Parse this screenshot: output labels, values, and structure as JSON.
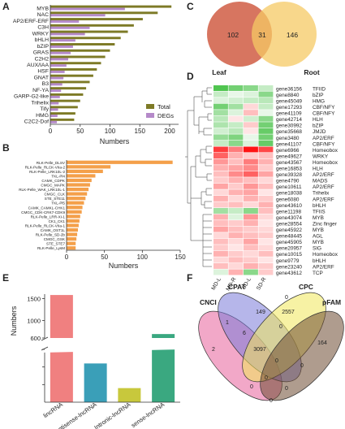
{
  "panels": {
    "A": "A",
    "B": "B",
    "C": "C",
    "D": "D",
    "E": "E",
    "F": "F"
  },
  "chart_data": [
    {
      "panel": "A",
      "type": "bar",
      "orientation": "horizontal",
      "categories": [
        "MYB",
        "NAC",
        "AP2/ERF-ERF",
        "C3H",
        "WRKY",
        "bHLH",
        "bZIP",
        "GRAS",
        "C2H2",
        "AUX/IAA",
        "HSF",
        "GNAT",
        "B3",
        "NF-YA",
        "GARP-G2-like",
        "Trihelix",
        "Tify",
        "HMG",
        "C2C2-Dof"
      ],
      "series": [
        {
          "name": "Total",
          "color": "#7d7a26",
          "values": [
            203,
            180,
            155,
            140,
            130,
            118,
            108,
            100,
            92,
            85,
            78,
            72,
            66,
            60,
            55,
            50,
            46,
            42,
            40
          ]
        },
        {
          "name": "DEGs",
          "color": "#b58ac9",
          "values": [
            125,
            92,
            48,
            66,
            58,
            42,
            38,
            34,
            30,
            27,
            24,
            22,
            20,
            18,
            16,
            14,
            13,
            12,
            11
          ]
        }
      ],
      "xlabel": "Numbers",
      "xticks": [
        0,
        50,
        100,
        150,
        200
      ],
      "xlim": [
        0,
        215
      ],
      "legend": "bottom-right"
    },
    {
      "panel": "B",
      "type": "bar",
      "orientation": "horizontal",
      "categories": [
        "RLK-Pelle_DLSV",
        "RLK-Pelle_RLCK-VIIa-2",
        "RLK-Pelle_LRK10L-2",
        "TKL-Pl4",
        "CAMK_CDPK",
        "CMGC_MAPK",
        "RLK-Pelle_WAK_LRK10L-1",
        "CMGC_CLK",
        "STE_STE11",
        "TKL-Pl5",
        "CAMK_CAMKL-CHK1",
        "CMGC_CDK-CRK7-CDK9",
        "RLK-Pelle_LRR-XI-1",
        "CK1_CK1",
        "RLK-Pelle_RLCK-VIIa-1",
        "CAMK_OST1L",
        "RLK-Pelle_SD-2b",
        "CMGC_GSK",
        "STE_STE7",
        "RLK-Pelle_LysM"
      ],
      "series": [
        {
          "name": "",
          "color": "#f4a04a",
          "values": [
            140,
            58,
            48,
            38,
            33,
            31,
            29,
            27,
            25,
            23,
            21,
            20,
            18,
            17,
            16,
            15,
            14,
            13,
            12,
            12
          ]
        }
      ],
      "xlabel": "Numbers",
      "xticks": [
        0,
        50,
        100,
        150
      ],
      "xlim": [
        0,
        150
      ]
    },
    {
      "panel": "C",
      "type": "venn",
      "sets": [
        {
          "name": "Leaf",
          "only": 102,
          "color": "#d3664f"
        },
        {
          "name": "Root",
          "only": 146,
          "color": "#f6c964"
        }
      ],
      "overlap": 31
    },
    {
      "panel": "D",
      "type": "heatmap",
      "columns": [
        "MD-L",
        "MD-R",
        "SD-L",
        "SD-R"
      ],
      "rows": [
        {
          "gene": "gene36156",
          "family": "TFIID",
          "values": [
            -1.5,
            -1.2,
            -1.0,
            -0.5
          ]
        },
        {
          "gene": "gene8840",
          "family": "bZIP",
          "values": [
            -0.5,
            -0.2,
            -0.3,
            -1.0
          ]
        },
        {
          "gene": "gene45049",
          "family": "HMG",
          "values": [
            -0.3,
            -0.4,
            -0.5,
            -0.6
          ]
        },
        {
          "gene": "gene17293",
          "family": "CBF/NFY",
          "values": [
            -1.2,
            -0.8,
            0.3,
            -0.5
          ]
        },
        {
          "gene": "gene41109",
          "family": "CBF/NFY",
          "values": [
            -0.8,
            -0.3,
            0.5,
            -0.2
          ]
        },
        {
          "gene": "gene42714",
          "family": "HLH",
          "values": [
            -0.6,
            0.2,
            -0.4,
            -1.0
          ]
        },
        {
          "gene": "gene30992",
          "family": "bZIP",
          "values": [
            -0.7,
            -0.5,
            0.4,
            -1.2
          ]
        },
        {
          "gene": "gene35668",
          "family": "JMJD",
          "values": [
            -0.4,
            -0.6,
            0.2,
            -1.3
          ]
        },
        {
          "gene": "gene3480",
          "family": "AP2/ERF",
          "values": [
            -0.9,
            -1.1,
            -0.2,
            -1.2
          ]
        },
        {
          "gene": "gene41107",
          "family": "CBF/NFY",
          "values": [
            -0.5,
            -1.0,
            -0.3,
            -1.3
          ]
        },
        {
          "gene": "gene6966",
          "family": "Homeobox",
          "values": [
            1.5,
            1.0,
            1.8,
            1.4
          ]
        },
        {
          "gene": "gene49627",
          "family": "WRKY",
          "values": [
            1.2,
            0.6,
            0.4,
            0.5
          ]
        },
        {
          "gene": "gene43567",
          "family": "Homeobox",
          "values": [
            0.8,
            0.5,
            1.0,
            0.6
          ]
        },
        {
          "gene": "gene16853",
          "family": "HLH",
          "values": [
            0.6,
            0.7,
            0.9,
            0.4
          ]
        },
        {
          "gene": "gene39328",
          "family": "AP2/ERF",
          "values": [
            0.5,
            0.9,
            1.2,
            0.7
          ]
        },
        {
          "gene": "gene4790",
          "family": "MADS",
          "values": [
            0.4,
            0.6,
            0.5,
            0.3
          ]
        },
        {
          "gene": "gene10611",
          "family": "AP2/ERF",
          "values": [
            0.7,
            0.4,
            0.8,
            0.5
          ]
        },
        {
          "gene": "gene18038",
          "family": "Trihelix",
          "values": [
            0.3,
            0.6,
            0.7,
            0.2
          ]
        },
        {
          "gene": "gene6080",
          "family": "AP2/ERF",
          "values": [
            0.6,
            0.3,
            0.6,
            0.4
          ]
        },
        {
          "gene": "gene43610",
          "family": "bHLH",
          "values": [
            0.4,
            0.5,
            0.3,
            0.6
          ]
        },
        {
          "gene": "gene11198",
          "family": "TFIIS",
          "values": [
            -0.8,
            -0.5,
            -1.0,
            0.5
          ]
        },
        {
          "gene": "gene43074",
          "family": "MYB",
          "values": [
            0.6,
            -0.3,
            0.8,
            0.3
          ]
        },
        {
          "gene": "gene28554",
          "family": "Zinc finger",
          "values": [
            0.5,
            0.4,
            0.6,
            0.2
          ]
        },
        {
          "gene": "gene45922",
          "family": "MYB",
          "values": [
            0.7,
            0.5,
            0.4,
            0.3
          ]
        },
        {
          "gene": "gene48445",
          "family": "AGL",
          "values": [
            0.3,
            0.6,
            0.5,
            0.4
          ]
        },
        {
          "gene": "gene45905",
          "family": "MYB",
          "values": [
            0.5,
            0.3,
            0.7,
            0.2
          ]
        },
        {
          "gene": "gene20957",
          "family": "SIG",
          "values": [
            0.4,
            0.2,
            0.5,
            0.3
          ]
        },
        {
          "gene": "gene10015",
          "family": "Homeobox",
          "values": [
            0.6,
            0.4,
            0.3,
            0.5
          ]
        },
        {
          "gene": "gene9779",
          "family": "bHLH",
          "values": [
            0.3,
            0.5,
            0.4,
            0.2
          ]
        },
        {
          "gene": "gene23240",
          "family": "AP2/ERF",
          "values": [
            0.5,
            0.3,
            0.6,
            0.4
          ]
        },
        {
          "gene": "gene43612",
          "family": "TCP",
          "values": [
            -0.3,
            0.6,
            -1.0,
            0.4
          ]
        }
      ]
    },
    {
      "panel": "E",
      "type": "bar",
      "categories": [
        "lincRNA",
        "Antisense-lncRNA",
        "Intronic-lncRNA",
        "sense-lncRNA"
      ],
      "colors": [
        "#f08080",
        "#3a9fb8",
        "#c8c83c",
        "#3aa880"
      ],
      "values": [
        1580,
        110,
        40,
        690
      ],
      "ylabel": "Numbers",
      "yticks_lower": [
        0,
        50,
        100,
        150
      ],
      "yticks_upper": [
        600,
        1000,
        1500
      ],
      "axis_break": [
        150,
        600
      ]
    },
    {
      "panel": "F",
      "type": "venn",
      "sets": [
        {
          "name": "CNCI",
          "color": "#e8609a"
        },
        {
          "name": "CPAT",
          "color": "#7a7ad8"
        },
        {
          "name": "CPC",
          "color": "#f0e85a"
        },
        {
          "name": "pFAM",
          "color": "#6e4a32"
        }
      ],
      "region_labels": [
        "3097",
        "149",
        "2557",
        "164",
        "2",
        "1",
        "0",
        "0",
        "0",
        "0",
        "0",
        "0",
        "0",
        "6",
        "0"
      ]
    }
  ]
}
